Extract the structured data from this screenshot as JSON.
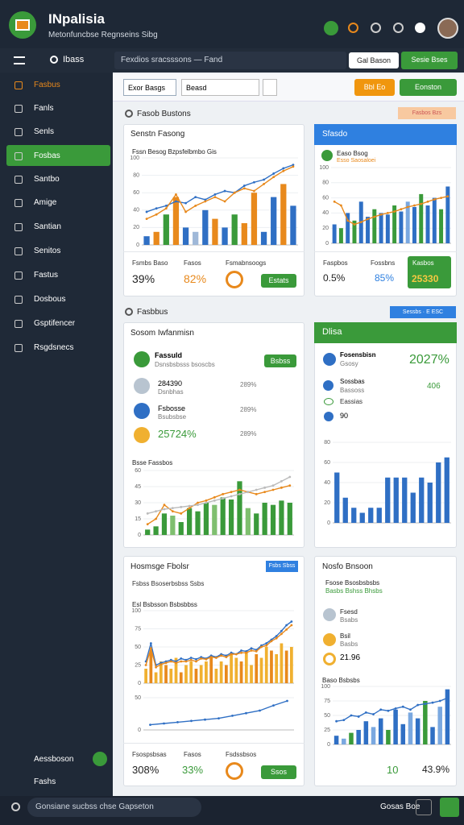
{
  "header": {
    "title": "INpalisia",
    "subtitle": "Metonfuncbse Regnseins Sibg"
  },
  "toolbar": {
    "search": "Ibass",
    "breadcrumb": "Fexdios sracsssons — Fand",
    "buttons": [
      "Gal Bason",
      "Sesie Bses"
    ]
  },
  "sidebar": {
    "items": [
      "Fasbus",
      "Fanls",
      "Senls",
      "Fosbas",
      "Santbo",
      "Amige",
      "Santian",
      "Senitos",
      "Fastus",
      "Dosbous",
      "Gsptifencer",
      "Rsgdsnecs"
    ],
    "footer": [
      "Aessboson",
      "Fashs"
    ]
  },
  "filters": {
    "selects": [
      "Exor Basgs",
      "Beasd"
    ],
    "buttons": [
      "Bbl Eo",
      "Eonston"
    ]
  },
  "sections": [
    {
      "title": "Fasob Bustons",
      "chip": "Fasbos Bzs"
    },
    {
      "title": "Fasbbus",
      "chip": "Sessbs · E ESC"
    }
  ],
  "cards": [
    {
      "title": "Senstn Fasong",
      "chart_title": "Fssn Besog Bzpsfelbmbo Gis",
      "chart": {
        "type": "bar-line",
        "ylim": [
          0,
          100
        ],
        "yticks": [
          0,
          20,
          40,
          60,
          80,
          100
        ],
        "series": [
          {
            "type": "bar",
            "colors": [
              "#2f6fc4",
              "#e8891c",
              "#3a9a3a",
              "#e8891c",
              "#2f6fc4",
              "#9fb8d8",
              "#2f6fc4",
              "#e8891c",
              "#2f6fc4",
              "#3a9a3a",
              "#e8891c",
              "#e8891c",
              "#2f6fc4",
              "#2f6fc4",
              "#e8891c",
              "#2f6fc4"
            ],
            "values": [
              10,
              15,
              35,
              55,
              20,
              15,
              40,
              30,
              20,
              35,
              25,
              60,
              15,
              55,
              70,
              45
            ]
          },
          {
            "type": "line",
            "color": "#2f6fc4",
            "values": [
              38,
              42,
              45,
              50,
              48,
              55,
              52,
              58,
              62,
              60,
              68,
              72,
              75,
              82,
              88,
              92
            ]
          },
          {
            "type": "line",
            "color": "#e8891c",
            "values": [
              30,
              35,
              42,
              58,
              38,
              45,
              50,
              55,
              50,
              60,
              65,
              62,
              70,
              78,
              85,
              90
            ]
          }
        ]
      },
      "stats": [
        {
          "label": "Fsmbs Baso",
          "value": "39%"
        },
        {
          "label": "Fasos",
          "value": "82%"
        },
        {
          "label": "Fsmabnsoogs",
          "button": "Estats"
        }
      ]
    },
    {
      "title": "Sfasdo",
      "chart_title": "Easo Bsog",
      "chart_sub": "Esso Saosaloei",
      "chart": {
        "type": "bar-line",
        "ylim": [
          0,
          100
        ],
        "yticks": [
          0,
          20,
          40,
          60,
          80,
          100
        ],
        "series": [
          {
            "type": "bar",
            "colors": [
              "#2f6fc4",
              "#3a9a3a",
              "#2f6fc4",
              "#3a9a3a",
              "#2f6fc4",
              "#2f6fc4",
              "#3a9a3a",
              "#2f6fc4",
              "#2f6fc4",
              "#3a9a3a",
              "#2f6fc4",
              "#7aa8e0",
              "#2f6fc4",
              "#3a9a3a",
              "#2f6fc4",
              "#2f6fc4",
              "#3a9a3a",
              "#2f6fc4"
            ],
            "values": [
              25,
              20,
              40,
              30,
              55,
              35,
              45,
              40,
              38,
              50,
              42,
              55,
              48,
              65,
              50,
              60,
              45,
              75
            ]
          },
          {
            "type": "line",
            "color": "#e8891c",
            "values": [
              55,
              50,
              30,
              25,
              28,
              32,
              35,
              38,
              40,
              42,
              45,
              48,
              50,
              52,
              55,
              58,
              60,
              62
            ]
          }
        ]
      },
      "stats": [
        {
          "label": "Faspbos",
          "value": "0.5%"
        },
        {
          "label": "Fossbns",
          "value": "85%"
        },
        {
          "label": "Kasbos",
          "value": "25330"
        }
      ]
    },
    {
      "title": "Sosom Iwfanmisn",
      "list": [
        {
          "title": "Fassuld",
          "sub": "Dsnsbsbsss bsoscbs",
          "button": "Bsbss"
        },
        {
          "title": "284390",
          "sub": "Dsnbhas",
          "value": "289%"
        },
        {
          "title": "Fsbosse",
          "sub": "Bsubsbse",
          "value": "289%"
        },
        {
          "title": "25724%",
          "value": "289%"
        }
      ],
      "chart_title": "Bsse Fassbos",
      "chart": {
        "type": "bar-line",
        "ylim": [
          0,
          60
        ],
        "yticks": [
          0,
          15,
          30,
          45,
          60
        ],
        "series": [
          {
            "type": "bar",
            "colors": [
              "#3a9a3a",
              "#3a9a3a",
              "#3a9a3a",
              "#7fbf6f",
              "#3a9a3a",
              "#3a9a3a",
              "#3a9a3a",
              "#3a9a3a",
              "#7fbf6f",
              "#3a9a3a",
              "#3a9a3a",
              "#3a9a3a",
              "#7fbf6f",
              "#3a9a3a",
              "#3a9a3a",
              "#3a9a3a",
              "#3a9a3a",
              "#3a9a3a"
            ],
            "values": [
              5,
              8,
              20,
              18,
              12,
              25,
              22,
              30,
              28,
              35,
              33,
              50,
              25,
              20,
              30,
              28,
              32,
              30
            ]
          },
          {
            "type": "line",
            "color": "#e8891c",
            "values": [
              10,
              15,
              28,
              22,
              20,
              25,
              30,
              32,
              35,
              38,
              40,
              42,
              40,
              38,
              40,
              42,
              44,
              46
            ]
          },
          {
            "type": "line",
            "color": "#bbbbbb",
            "values": [
              20,
              22,
              24,
              25,
              26,
              27,
              28,
              30,
              32,
              34,
              36,
              38,
              40,
              42,
              44,
              46,
              50,
              54
            ]
          }
        ]
      }
    },
    {
      "title": "Dlisa",
      "big": "2027%",
      "list": [
        {
          "title": "Fosensbisn",
          "sub": "Gsosy"
        },
        {
          "title": "Sossbas",
          "sub": "Bassoss",
          "value": "406"
        },
        {
          "title": "Eassias"
        },
        {
          "title": "90"
        }
      ],
      "chart": {
        "type": "bar",
        "ylim": [
          0,
          80
        ],
        "yticks": [
          0,
          20,
          40,
          60,
          80
        ],
        "series": [
          {
            "type": "bar",
            "colors": [
              "#2f6fc4",
              "#2f6fc4",
              "#2f6fc4",
              "#2f6fc4",
              "#2f6fc4",
              "#2f6fc4",
              "#2f6fc4",
              "#2f6fc4",
              "#2f6fc4",
              "#2f6fc4",
              "#2f6fc4",
              "#2f6fc4",
              "#2f6fc4",
              "#2f6fc4"
            ],
            "values": [
              50,
              25,
              15,
              10,
              15,
              15,
              45,
              45,
              45,
              30,
              45,
              40,
              60,
              65
            ]
          }
        ]
      }
    },
    {
      "title": "Hosmsge Fbolsr",
      "chip": "Fsbs Sbss",
      "sub": "Fsbss Bsoserbsbss Ssbs",
      "chart_title": "Esl Bsbsson Bsbsbbss",
      "chart": {
        "type": "bar-line",
        "ylim": [
          0,
          100
        ],
        "yticks": [
          0,
          25,
          50,
          75,
          100
        ],
        "series": [
          {
            "type": "bar",
            "colors": [
              "#f0b030",
              "#e8891c",
              "#f0b030",
              "#f0b030",
              "#e8891c",
              "#f0b030",
              "#f0b030",
              "#e8891c",
              "#f0b030",
              "#f0b030",
              "#e8891c",
              "#f0b030",
              "#f0b030",
              "#e8891c",
              "#f0b030",
              "#f0b030",
              "#e8891c",
              "#f0b030",
              "#f0b030",
              "#e8891c",
              "#f0b030",
              "#f0b030",
              "#e8891c",
              "#f0b030",
              "#f0b030",
              "#e8891c",
              "#f0b030",
              "#f0b030",
              "#e8891c",
              "#f0b030"
            ],
            "values": [
              20,
              45,
              15,
              30,
              25,
              20,
              35,
              15,
              25,
              30,
              20,
              25,
              30,
              35,
              20,
              30,
              25,
              40,
              35,
              30,
              45,
              25,
              40,
              35,
              50,
              45,
              40,
              55,
              45,
              50
            ]
          },
          {
            "type": "line",
            "color": "#2f6fc4",
            "values": [
              30,
              55,
              25,
              28,
              30,
              32,
              30,
              34,
              32,
              35,
              33,
              36,
              34,
              38,
              36,
              40,
              38,
              42,
              40,
              45,
              44,
              48,
              46,
              52,
              55,
              60,
              65,
              72,
              80,
              85
            ]
          },
          {
            "type": "line",
            "color": "#e8891c",
            "values": [
              25,
              48,
              22,
              26,
              28,
              30,
              28,
              30,
              30,
              32,
              30,
              34,
              33,
              36,
              35,
              38,
              36,
              40,
              40,
              42,
              42,
              45,
              44,
              50,
              52,
              58,
              62,
              68,
              74,
              80
            ]
          }
        ]
      },
      "chart2": {
        "type": "line",
        "ylim": [
          0,
          50
        ],
        "yticks": [
          0,
          50
        ],
        "series": [
          {
            "type": "line",
            "color": "#2f6fc4",
            "values": [
              8,
              10,
              12,
              14,
              16,
              18,
              22,
              26,
              30,
              38,
              45
            ]
          }
        ]
      },
      "stats": [
        {
          "label": "Fsospsbsas",
          "value": "308%"
        },
        {
          "label": "Fasos",
          "value": "33%"
        },
        {
          "label": "Fsdssbsos",
          "button": "Ssos"
        }
      ]
    },
    {
      "title": "Nosfo Bnsoon",
      "sub": "Fsose Bsosbsbsbs",
      "sub2": "Basbs Bshss Bhsbs",
      "list": [
        {
          "title": "Fsesd",
          "sub": "Bsabs"
        },
        {
          "title": "Bsil",
          "sub": "Basbs"
        },
        {
          "title": "21.96"
        }
      ],
      "chart_title": "Baso Bsbsbs",
      "chart": {
        "type": "bar-line",
        "ylim": [
          0,
          100
        ],
        "yticks": [
          0,
          25,
          50,
          75,
          100
        ],
        "series": [
          {
            "type": "bar",
            "colors": [
              "#2f6fc4",
              "#7aa8e0",
              "#3a9a3a",
              "#2f6fc4",
              "#2f6fc4",
              "#7aa8e0",
              "#2f6fc4",
              "#3a9a3a",
              "#2f6fc4",
              "#2f6fc4",
              "#7aa8e0",
              "#2f6fc4",
              "#3a9a3a",
              "#2f6fc4",
              "#7aa8e0",
              "#2f6fc4"
            ],
            "values": [
              15,
              10,
              20,
              25,
              40,
              30,
              45,
              25,
              60,
              35,
              55,
              45,
              75,
              30,
              65,
              95
            ]
          },
          {
            "type": "line",
            "color": "#2f6fc4",
            "values": [
              40,
              42,
              50,
              48,
              55,
              52,
              60,
              58,
              62,
              65,
              60,
              68,
              70,
              72,
              75,
              80
            ]
          }
        ]
      },
      "stats": [
        {
          "value": "10"
        },
        {
          "value": "43.9%"
        }
      ]
    }
  ],
  "bottom_bar": {
    "search": "Gonsiane sucbss chse Gapseton",
    "label": "Gosas Boe"
  }
}
